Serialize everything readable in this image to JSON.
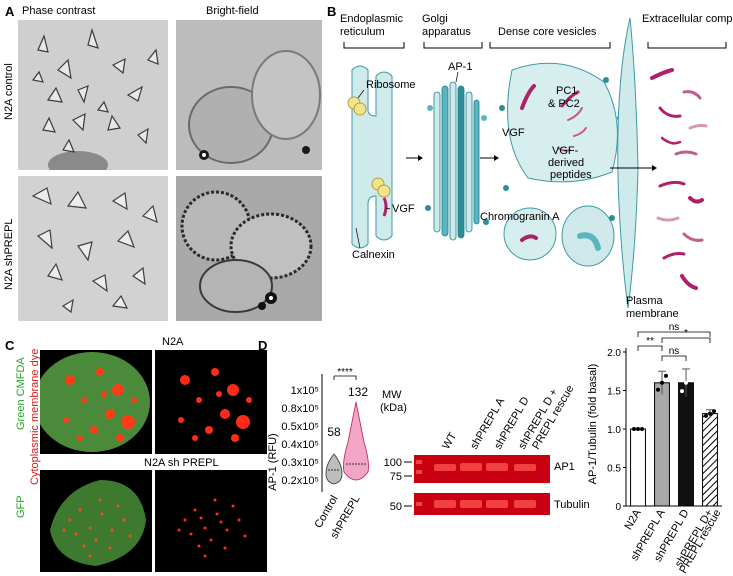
{
  "panel_a": {
    "letter": "A",
    "col_phase": "Phase contrast",
    "col_bright": "Bright-field",
    "row_control": "N2A control",
    "row_shprepl": "N2A  shPREPL"
  },
  "panel_b": {
    "letter": "B",
    "er_title_1": "Endoplasmic",
    "er_title_2": "reticulum",
    "golgi_title_1": "Golgi",
    "golgi_title_2": "apparatus",
    "dcv_title": "Dense core vesicles",
    "extra_title": "Extracellular compartment",
    "ribosome": "Ribosome",
    "vgf": "VGF",
    "calnexin": "Calnexin",
    "ap1": "AP-1",
    "pc_1": "PC1",
    "pc_2": "& PC2",
    "vgf_dcv": "VGF",
    "vgf_derived_1": "VGF-",
    "vgf_derived_2": "derived",
    "vgf_derived_3": "peptides",
    "chromogranin": "Chromogranin A",
    "plasma_1": "Plasma",
    "plasma_2": "membrane"
  },
  "panel_c": {
    "letter": "C",
    "top_title": "N2A",
    "bottom_title": "N2A sh PREPL",
    "green_cmfda": "Green CMFDA",
    "cyto_dye": "Cytoplasmic membrane dye",
    "gfp": "GFP"
  },
  "panel_d": {
    "letter": "D",
    "violin_ylabel": "AP-1 (RFU)",
    "violin_yticks": [
      "0.2x10⁵",
      "0.3x10⁵",
      "0.4x10⁵",
      "0.5x10⁵",
      "0.8x10⁵",
      "1x10⁵"
    ],
    "violin_sig": "****",
    "violin_n_control": "58",
    "violin_n_shprepl": "132",
    "violin_xticks": [
      "Control",
      "shPREPL"
    ],
    "blot_mw_1": "MW",
    "blot_mw_2": "(kDa)",
    "blot_markers": [
      "100",
      "75",
      "50"
    ],
    "blot_lanes": [
      "WT",
      "shPREPL A",
      "shPREPL D",
      "shPREPL D +",
      "PREPL rescue"
    ],
    "blot_ap1": "AP1",
    "blot_tubulin": "Tubulin",
    "bar_ylabel": "AP-1/Tubulin (fold basal)",
    "bar_yticks": [
      "0",
      "0.5",
      "1.0",
      "1.5",
      "2.0"
    ],
    "bar_xticks": [
      "N2A",
      "shPREPL A",
      "shPREPL D",
      "shPREPL D+",
      "PREPL rescue"
    ],
    "bar_sig_top": "ns",
    "bar_sig_a": "**",
    "bar_sig_mid": "*",
    "bar_sig_ns2": "ns"
  },
  "chart_data": [
    {
      "type": "violin",
      "categories": [
        "Control",
        "shPREPL"
      ],
      "n": [
        58,
        132
      ],
      "ylabel": "AP-1 (RFU)",
      "significance": "****"
    },
    {
      "type": "bar",
      "categories": [
        "N2A",
        "shPREPL A",
        "shPREPL D",
        "shPREPL D+ PREPL rescue"
      ],
      "values": [
        1.0,
        1.6,
        1.6,
        1.2
      ],
      "errors": [
        0.0,
        0.15,
        0.18,
        0.05
      ],
      "ylabel": "AP-1/Tubulin (fold basal)",
      "ylim": [
        0,
        2.0
      ],
      "colors": [
        "#ffffff",
        "#a8a8a8",
        "#111111",
        "hatched"
      ],
      "significance": [
        {
          "pair": [
            "N2A",
            "shPREPL D+ PREPL rescue"
          ],
          "label": "ns"
        },
        {
          "pair": [
            "N2A",
            "shPREPL A"
          ],
          "label": "**"
        },
        {
          "pair": [
            "shPREPL A",
            "shPREPL D+ PREPL rescue"
          ],
          "label": "*"
        },
        {
          "pair": [
            "shPREPL A",
            "shPREPL D"
          ],
          "label": "ns"
        }
      ]
    }
  ]
}
